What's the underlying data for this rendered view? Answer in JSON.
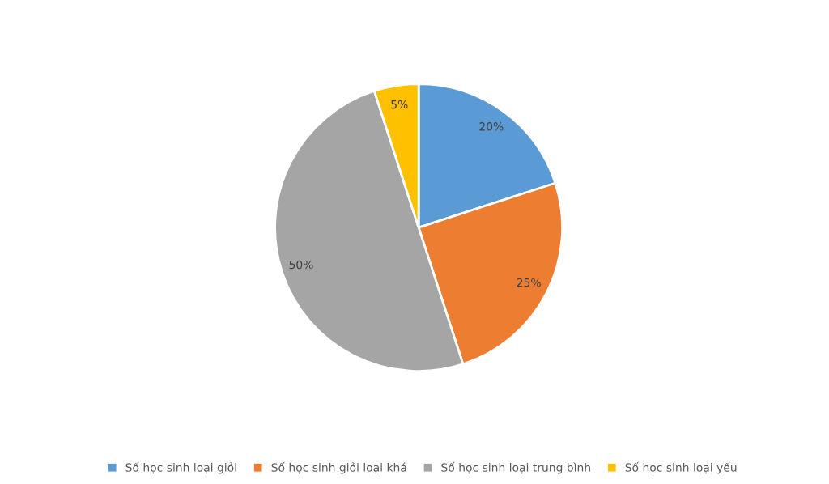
{
  "chart_data": {
    "type": "pie",
    "categories": [
      "Số học sinh loại giỏi",
      "Số học sinh giỏi loại khá",
      "Số học sinh loại trung bình",
      "Số học sinh loại yếu"
    ],
    "values": [
      20,
      25,
      50,
      5
    ],
    "colors": [
      "#5b9bd5",
      "#ed7d31",
      "#a5a5a5",
      "#ffc000"
    ],
    "value_labels": [
      "20%",
      "25%",
      "50%",
      "5%"
    ],
    "legend": "bottom"
  }
}
